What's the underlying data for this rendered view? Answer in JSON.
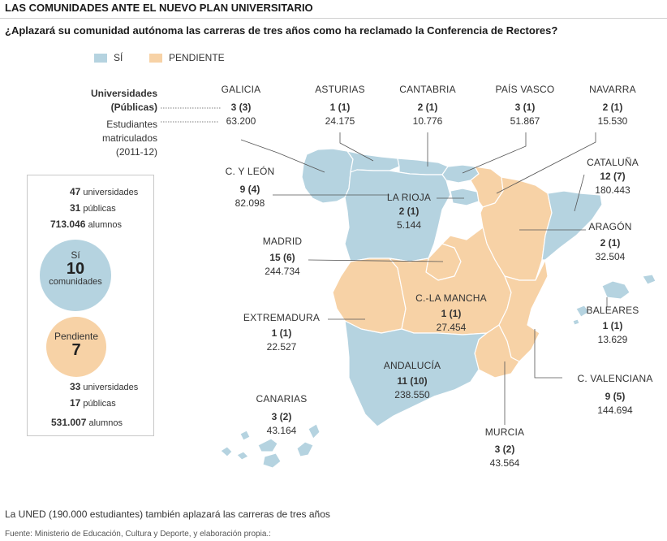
{
  "header": {
    "title": "LAS COMUNIDADES ANTE EL NUEVO PLAN UNIVERSITARIO",
    "subtitle": "¿Aplazará su comunidad autónoma las carreras de tres años como ha reclamado la Conferencia de Rectores?"
  },
  "legend": {
    "si_label": "SÍ",
    "pendiente_label": "PENDIENTE",
    "colors": {
      "si": "#b5d3e0",
      "pendiente": "#f7d2a6",
      "border": "#ffffff",
      "line": "#555555"
    }
  },
  "key": {
    "universidades": "Universidades",
    "publicas": "(Públicas)",
    "estudiantes": "Estudiantes",
    "matriculados": "matriculados",
    "curso": "(2011-12)"
  },
  "regions": {
    "galicia": {
      "name": "GALICIA",
      "univ": "3 (3)",
      "students": "63.200",
      "status": "si"
    },
    "asturias": {
      "name": "ASTURIAS",
      "univ": "1 (1)",
      "students": "24.175",
      "status": "si"
    },
    "cantabria": {
      "name": "CANTABRIA",
      "univ": "2 (1)",
      "students": "10.776",
      "status": "si"
    },
    "pais_vasco": {
      "name": "PAÍS VASCO",
      "univ": "3 (1)",
      "students": "51.867",
      "status": "si"
    },
    "navarra": {
      "name": "NAVARRA",
      "univ": "2 (1)",
      "students": "15.530",
      "status": "pendiente"
    },
    "cataluna": {
      "name": "CATALUÑA",
      "univ": "12 (7)",
      "students": "180.443",
      "status": "si"
    },
    "cyleon": {
      "name": "C. Y LEÓN",
      "univ": "9 (4)",
      "students": "82.098",
      "status": "si"
    },
    "la_rioja": {
      "name": "LA RIOJA",
      "univ": "2 (1)",
      "students": "5.144",
      "status": "si"
    },
    "aragon": {
      "name": "ARAGÓN",
      "univ": "2 (1)",
      "students": "32.504",
      "status": "pendiente"
    },
    "madrid": {
      "name": "MADRID",
      "univ": "15 (6)",
      "students": "244.734",
      "status": "pendiente"
    },
    "clamancha": {
      "name": "C.-LA MANCHA",
      "univ": "1 (1)",
      "students": "27.454",
      "status": "pendiente"
    },
    "extremadura": {
      "name": "EXTREMADURA",
      "univ": "1 (1)",
      "students": "22.527",
      "status": "pendiente"
    },
    "baleares": {
      "name": "BALEARES",
      "univ": "1 (1)",
      "students": "13.629",
      "status": "si"
    },
    "andalucia": {
      "name": "ANDALUCÍA",
      "univ": "11 (10)",
      "students": "238.550",
      "status": "si"
    },
    "cvalenciana": {
      "name": "C. VALENCIANA",
      "univ": "9 (5)",
      "students": "144.694",
      "status": "pendiente"
    },
    "canarias": {
      "name": "CANARIAS",
      "univ": "3 (2)",
      "students": "43.164",
      "status": "si"
    },
    "murcia": {
      "name": "MURCIA",
      "univ": "3 (2)",
      "students": "43.564",
      "status": "pendiente"
    }
  },
  "summary": {
    "si": {
      "universidades_num": "47",
      "universidades_txt": "universidades",
      "publicas_num": "31",
      "publicas_txt": "públicas",
      "alumnos_num": "713.046",
      "alumnos_txt": "alumnos",
      "circle_label": "Sí",
      "circle_num": "10",
      "circle_sub": "comunidades"
    },
    "pendiente": {
      "circle_label": "Pendiente",
      "circle_num": "7",
      "universidades_num": "33",
      "universidades_txt": "universidades",
      "publicas_num": "17",
      "publicas_txt": "públicas",
      "alumnos_num": "531.007",
      "alumnos_txt": "alumnos"
    }
  },
  "footer": {
    "note": "La UNED (190.000 estudiantes) también aplazará las carreras de tres años",
    "source": "Fuente: Ministerio de Educación, Cultura y Deporte, y elaboración propia.:"
  }
}
